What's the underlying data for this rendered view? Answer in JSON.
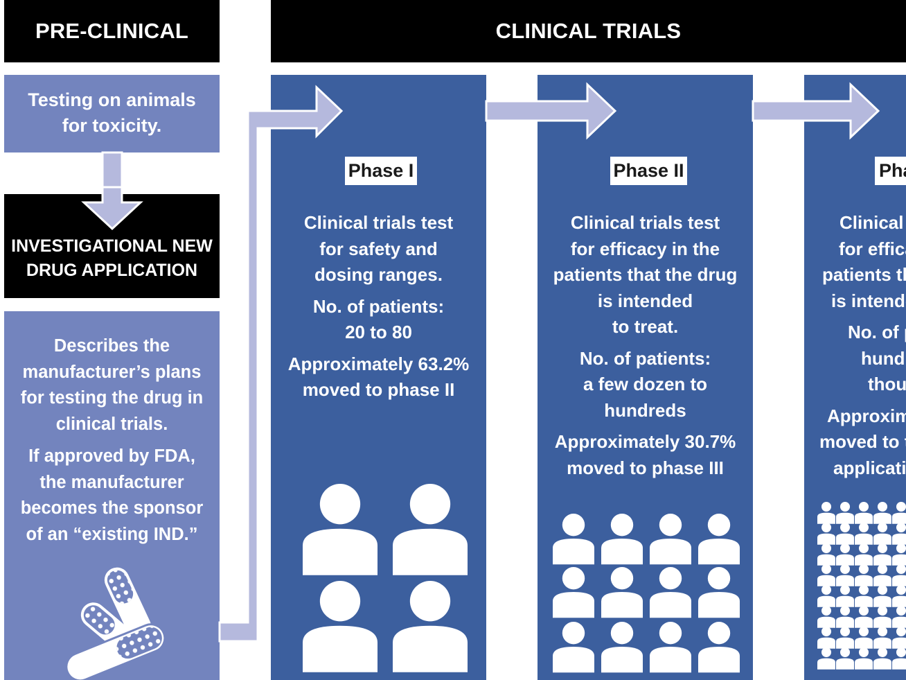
{
  "headers": {
    "preclinical": "PRE-CLINICAL",
    "clinical_trials": "CLINICAL TRIALS"
  },
  "preclinical": {
    "testing_text": [
      "Testing on  animals",
      "for toxicity."
    ],
    "ind_title": [
      "INVESTIGATIONAL NEW",
      "DRUG APPLICATION"
    ],
    "describes": [
      "Describes the",
      "manufacturer’s plans",
      "for testing the drug in",
      "clinical trials."
    ],
    "approval": [
      "If approved by FDA,",
      "the manufacturer",
      "becomes the sponsor",
      "of an “existing IND.”"
    ],
    "pills_icon": "pills-icon"
  },
  "phases": [
    {
      "label": "Phase I",
      "description": [
        "Clinical trials test",
        "for safety and",
        "dosing ranges."
      ],
      "patients": [
        "No. of patients:",
        "20 to 80"
      ],
      "moved": [
        "Approximately 63.2%",
        "moved to phase II"
      ],
      "people_icon": "person-icon"
    },
    {
      "label": "Phase II",
      "description": [
        "Clinical trials test",
        "for efficacy in the",
        "patients that the drug",
        "is intended",
        "to treat."
      ],
      "patients": [
        "No. of patients:",
        "a few dozen to",
        "hundreds"
      ],
      "moved": [
        "Approximately 30.7%",
        "moved to phase III"
      ],
      "people_icon": "person-icon"
    },
    {
      "label": "Pha",
      "description": [
        "Clinical",
        "for effica",
        "patients th",
        "is intende"
      ],
      "patients": [
        "No. of p",
        "hund",
        "thou"
      ],
      "moved": [
        "Approxim",
        "moved to t",
        "applicatio"
      ],
      "people_icon": "person-icon"
    }
  ],
  "colors": {
    "dark_blue": "#3c5f9e",
    "light_blue": "#7384be",
    "arrow": "#b5b9dd",
    "black": "#000000",
    "white": "#ffffff"
  }
}
